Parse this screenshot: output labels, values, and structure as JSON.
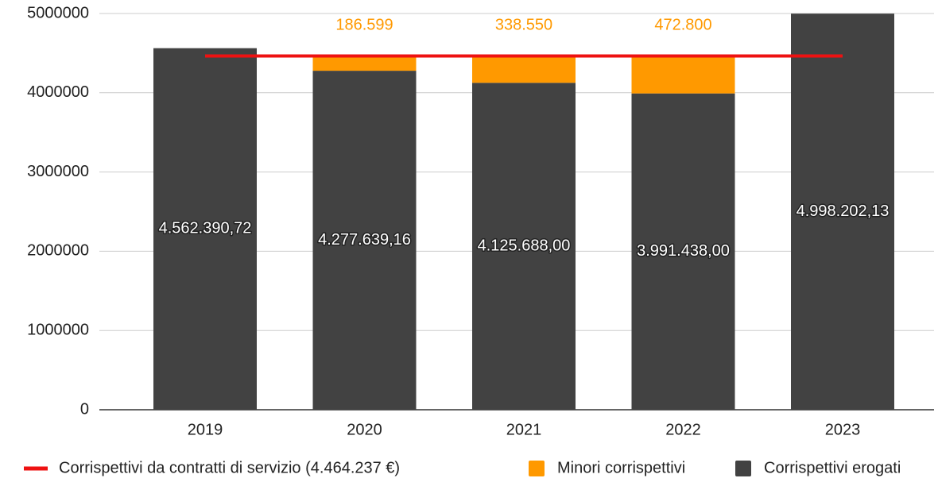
{
  "chart_data": {
    "type": "bar",
    "stacked": true,
    "categories": [
      "2019",
      "2020",
      "2021",
      "2022",
      "2023"
    ],
    "series": [
      {
        "name": "Corrispettivi erogati",
        "color": "#424242",
        "type": "bar",
        "values": [
          4562390.72,
          4277639.16,
          4125688,
          3991438,
          4998202.13
        ],
        "value_labels": [
          "4.562.390,72",
          "4.277.639,16",
          "4.125.688,00",
          "3.991.438,00",
          "4.998.202,13"
        ]
      },
      {
        "name": "Minori corrispettivi",
        "color": "#ff9900",
        "type": "bar",
        "values": [
          null,
          186599,
          338550,
          472800,
          null
        ],
        "value_labels": [
          null,
          "186.599",
          "338.550",
          "472.800",
          null
        ]
      },
      {
        "name": "Corrispettivi da contratti di servizio (4.464.237 €)",
        "color": "#ee1111",
        "type": "line",
        "values": [
          4464237,
          4464237,
          4464237,
          4464237,
          4464237
        ]
      }
    ],
    "ylim": [
      0,
      5000000
    ],
    "yticks": [
      0,
      1000000,
      2000000,
      3000000,
      4000000,
      5000000
    ],
    "grid": true,
    "legend": "bottom"
  }
}
